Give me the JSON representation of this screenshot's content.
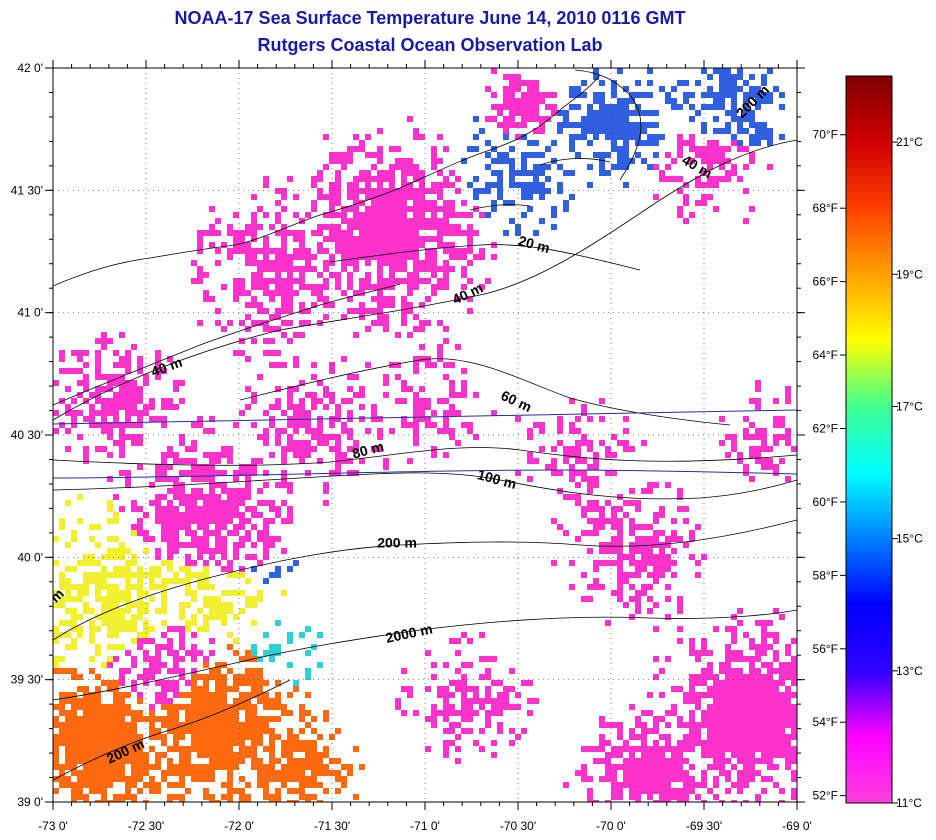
{
  "header": {
    "title": "NOAA-17 Sea Surface Temperature June 14, 2010 0116 GMT",
    "subtitle": "Rutgers Coastal Ocean Observation Lab"
  },
  "map": {
    "lon_range": [
      -73.0,
      -69.0
    ],
    "lat_range": [
      39.0,
      42.0
    ],
    "x_ticks": [
      {
        "value": -73.0,
        "label": "-73 0'"
      },
      {
        "value": -72.5,
        "label": "-72 30'"
      },
      {
        "value": -72.0,
        "label": "-72 0'"
      },
      {
        "value": -71.5,
        "label": "-71 30'"
      },
      {
        "value": -71.0,
        "label": "-71 0'"
      },
      {
        "value": -70.5,
        "label": "-70 30'"
      },
      {
        "value": -70.0,
        "label": "-70 0'"
      },
      {
        "value": -69.5,
        "label": "-69 30'"
      },
      {
        "value": -69.0,
        "label": "-69 0'"
      }
    ],
    "y_ticks": [
      {
        "value": 42.0,
        "label": "42 0'"
      },
      {
        "value": 41.5,
        "label": "41 30'"
      },
      {
        "value": 41.0,
        "label": "41 0'"
      },
      {
        "value": 40.5,
        "label": "40 30'"
      },
      {
        "value": 40.0,
        "label": "40 0'"
      },
      {
        "value": 39.5,
        "label": "39 30'"
      },
      {
        "value": 39.0,
        "label": "39 0'"
      }
    ],
    "grid": true,
    "contour_labels": [
      {
        "text": "200 m",
        "lon": -69.22,
        "lat": 41.85,
        "angle": -45
      },
      {
        "text": "40 m",
        "lon": -69.55,
        "lat": 41.58,
        "angle": 30
      },
      {
        "text": "20 m",
        "lon": -70.42,
        "lat": 41.26,
        "angle": 15
      },
      {
        "text": "40 m",
        "lon": -70.76,
        "lat": 41.06,
        "angle": -25
      },
      {
        "text": "40 m",
        "lon": -72.38,
        "lat": 40.76,
        "angle": -20
      },
      {
        "text": "60 m",
        "lon": -70.52,
        "lat": 40.62,
        "angle": 25
      },
      {
        "text": "80 m",
        "lon": -71.3,
        "lat": 40.42,
        "angle": -15
      },
      {
        "text": "100 m",
        "lon": -70.62,
        "lat": 40.3,
        "angle": 15
      },
      {
        "text": "200 m",
        "lon": -71.15,
        "lat": 40.04,
        "angle": 0
      },
      {
        "text": "2000 m",
        "lon": -71.08,
        "lat": 39.67,
        "angle": -12
      },
      {
        "text": "200 m",
        "lon": -72.6,
        "lat": 39.19,
        "angle": -25
      },
      {
        "text": "m",
        "lon": -72.96,
        "lat": 39.83,
        "angle": -45
      }
    ],
    "colors": {
      "land_mask": "#ffffff",
      "cold": "#ff33cc",
      "cool": "#3060e0",
      "mid": "#30d0d0",
      "warm": "#f0f030",
      "hot": "#ff6a10"
    }
  },
  "colorbar": {
    "min_c": 11,
    "max_c": 22,
    "stops": [
      "#ff40e0",
      "#ff00ff",
      "#3000ff",
      "#0000ff",
      "#0080ff",
      "#00ffff",
      "#40ff90",
      "#ffff00",
      "#ffa000",
      "#ff4000",
      "#d00000",
      "#800000"
    ],
    "f_labels": [
      "52°F",
      "54°F",
      "56°F",
      "58°F",
      "60°F",
      "62°F",
      "64°F",
      "66°F",
      "68°F",
      "70°F"
    ],
    "f_values": [
      52,
      54,
      56,
      58,
      60,
      62,
      64,
      66,
      68,
      70
    ],
    "c_labels": [
      "11°C",
      "13°C",
      "15°C",
      "17°C",
      "19°C",
      "21°C"
    ],
    "c_values": [
      11,
      13,
      15,
      17,
      19,
      21
    ]
  }
}
